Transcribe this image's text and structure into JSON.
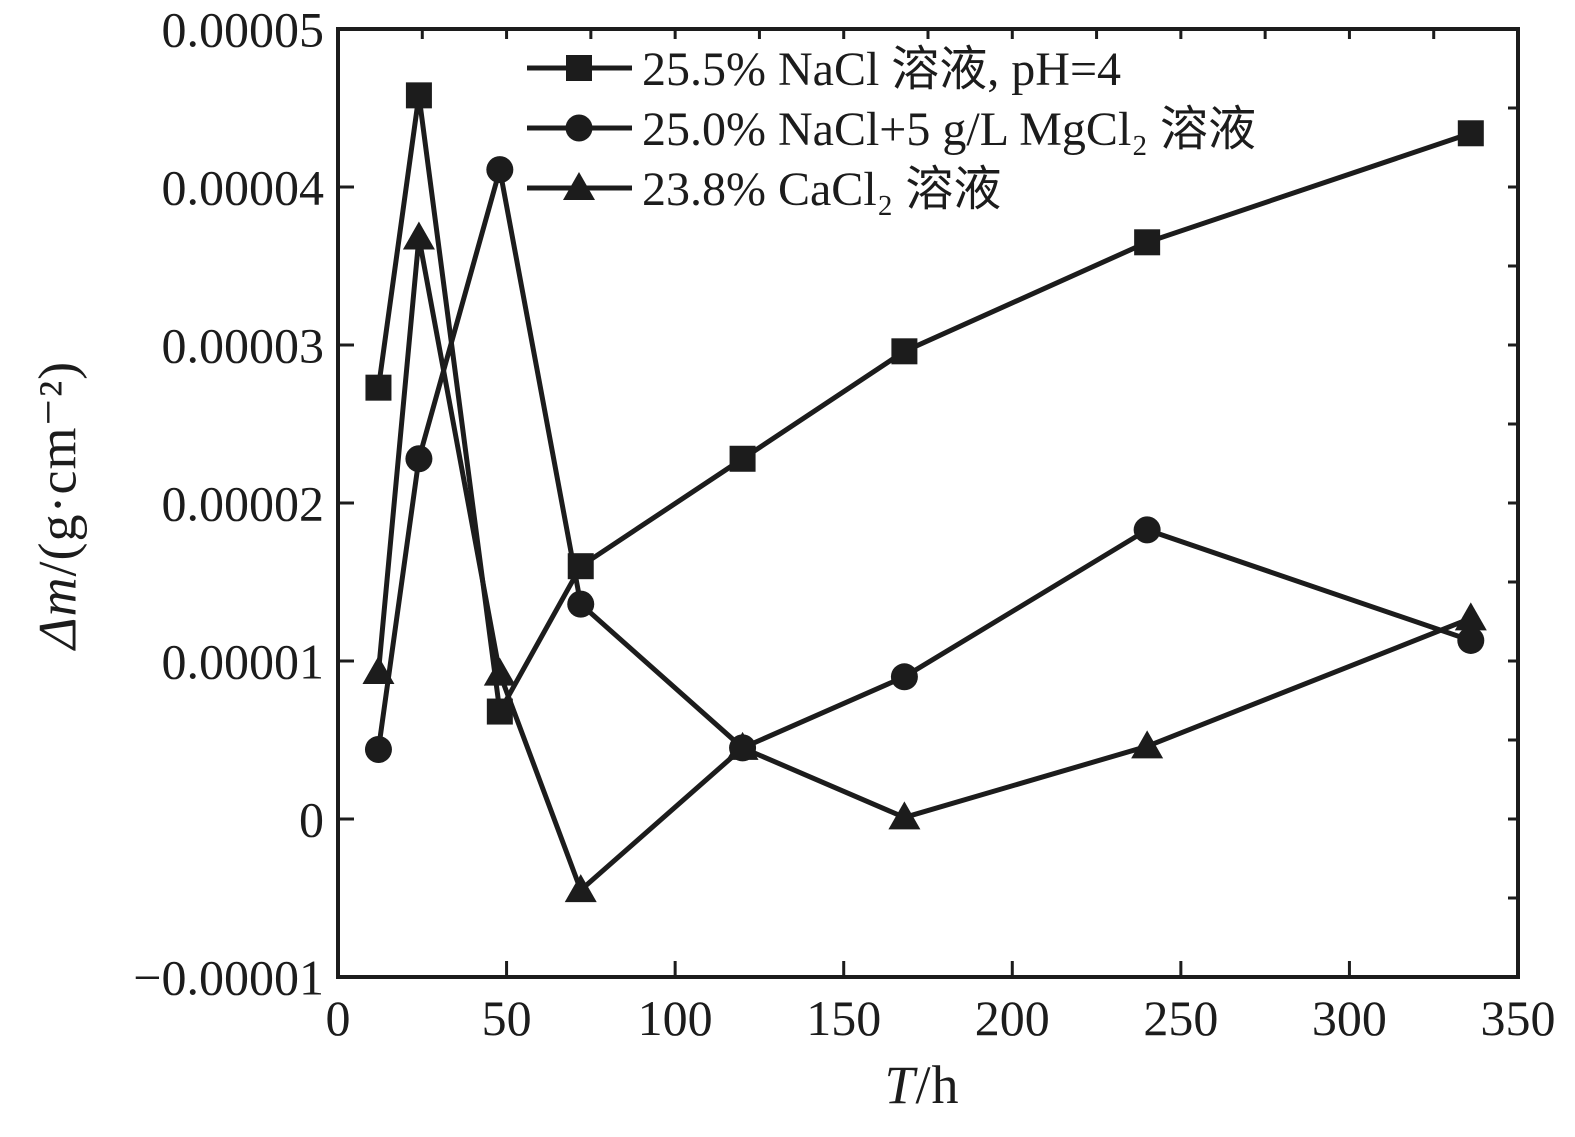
{
  "figure": {
    "background": "#ffffff",
    "ink_color": "#1c1c1c"
  },
  "chart_data": {
    "type": "line",
    "title": "",
    "xlabel_italic": "T",
    "xlabel_rest": "/h",
    "ylabel_italic": "Δm",
    "ylabel_rest": "/(g·cm⁻²)",
    "xlim": [
      0,
      350
    ],
    "ylim": [
      -1e-05,
      5e-05
    ],
    "grid": false,
    "legend_position": "top-inside",
    "x_ticks": [
      {
        "value": 0,
        "label": "0"
      },
      {
        "value": 50,
        "label": "50"
      },
      {
        "value": 100,
        "label": "100"
      },
      {
        "value": 150,
        "label": "150"
      },
      {
        "value": 200,
        "label": "200"
      },
      {
        "value": 250,
        "label": "250"
      },
      {
        "value": 300,
        "label": "300"
      },
      {
        "value": 350,
        "label": "350"
      }
    ],
    "y_ticks": [
      {
        "value": 5e-05,
        "label": "0.00005"
      },
      {
        "value": 4e-05,
        "label": "0.00004"
      },
      {
        "value": 3e-05,
        "label": "0.00003"
      },
      {
        "value": 2e-05,
        "label": "0.00002"
      },
      {
        "value": 1e-05,
        "label": "0.00001"
      },
      {
        "value": 0,
        "label": "0"
      },
      {
        "value": -1e-05,
        "label": "−0.00001"
      }
    ],
    "top_minor_step": 25,
    "right_minor_step": 5e-06,
    "x": [
      12,
      24,
      48,
      72,
      120,
      168,
      240,
      336
    ],
    "series": [
      {
        "name": "25.5% NaCl 溶液, pH=4",
        "marker": "square",
        "color": "#1c1c1c",
        "values": [
          2.73e-05,
          4.58e-05,
          6.8e-06,
          1.6e-05,
          2.28e-05,
          2.96e-05,
          3.65e-05,
          4.34e-05
        ]
      },
      {
        "name": "25.0% NaCl+5 g/L MgCl₂ 溶液",
        "marker": "circle",
        "color": "#1c1c1c",
        "values": [
          4.4e-06,
          2.28e-05,
          4.11e-05,
          1.36e-05,
          4.5e-06,
          9e-06,
          1.83e-05,
          1.13e-05
        ]
      },
      {
        "name": "23.8% CaCl₂ 溶液",
        "marker": "triangle",
        "color": "#1c1c1c",
        "values": [
          9.3e-06,
          3.68e-05,
          9.2e-06,
          -4.5e-06,
          4.5e-06,
          1e-07,
          4.6e-06,
          1.27e-05
        ]
      }
    ]
  }
}
